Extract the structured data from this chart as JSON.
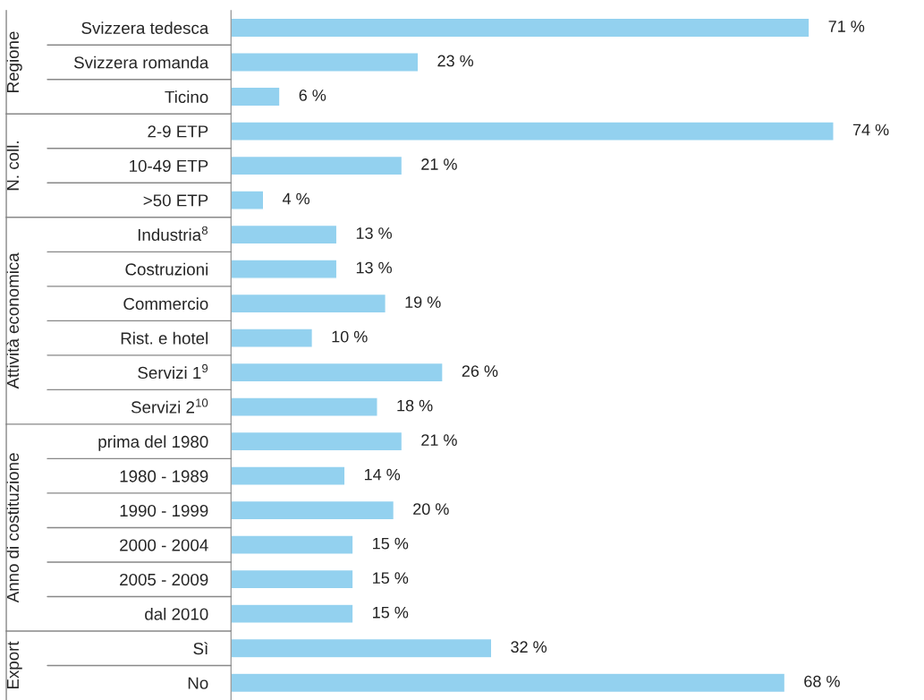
{
  "chart_data": [
    {
      "type": "bar",
      "orientation": "horizontal",
      "tick_labels": "y",
      "ylabel": "Regione",
      "categories": [
        "Svizzera tedesca",
        "Svizzera romanda",
        "Ticino"
      ],
      "series": [
        {
          "color": "#93d1ef",
          "values": [
            71,
            23,
            6
          ],
          "value_labels": [
            "71 %",
            "23 %",
            "6 %"
          ]
        }
      ]
    },
    {
      "type": "bar",
      "orientation": "horizontal",
      "tick_labels": "y",
      "ylabel": "N. coll.",
      "categories": [
        "2-9 ETP",
        "10-49 ETP",
        ">50 ETP"
      ],
      "series": [
        {
          "color": "#93d1ef",
          "values": [
            74,
            21,
            4
          ],
          "value_labels": [
            "74 %",
            "21 %",
            "4 %"
          ]
        }
      ]
    },
    {
      "type": "bar",
      "orientation": "horizontal",
      "tick_labels": "y",
      "ylabel": "Attività economica",
      "categories": [
        "Industria$^{8}$",
        "Costruzioni",
        "Commercio",
        "Rist. e hotel",
        "Servizi 1$^{9}$",
        "Servizi 2$^{10}$"
      ],
      "series": [
        {
          "color": "#93d1ef",
          "values": [
            13,
            13,
            19,
            10,
            26,
            18
          ],
          "value_labels": [
            "13 %",
            "13 %",
            "19 %",
            "10 %",
            "26 %",
            "18 %"
          ]
        }
      ]
    },
    {
      "type": "bar",
      "orientation": "horizontal",
      "tick_labels": "y",
      "ylabel": "Anno di costituzione",
      "categories": [
        "prima del 1980",
        "1980 - 1989",
        "1990 - 1999",
        "2000 - 2004",
        "2005 - 2009",
        "dal 2010"
      ],
      "series": [
        {
          "color": "#93d1ef",
          "values": [
            21,
            14,
            20,
            15,
            15,
            15
          ],
          "value_labels": [
            "21 %",
            "14 %",
            "20 %",
            "15 %",
            "15 %",
            "15 %"
          ]
        }
      ]
    },
    {
      "type": "bar",
      "orientation": "horizontal",
      "tick_labels": "y",
      "ylabel": "Export",
      "categories": [
        "Sì",
        "No"
      ],
      "series": [
        {
          "color": "#93d1ef",
          "values": [
            32,
            68
          ],
          "value_labels": [
            "32 %",
            "68 %"
          ]
        }
      ]
    }
  ]
}
